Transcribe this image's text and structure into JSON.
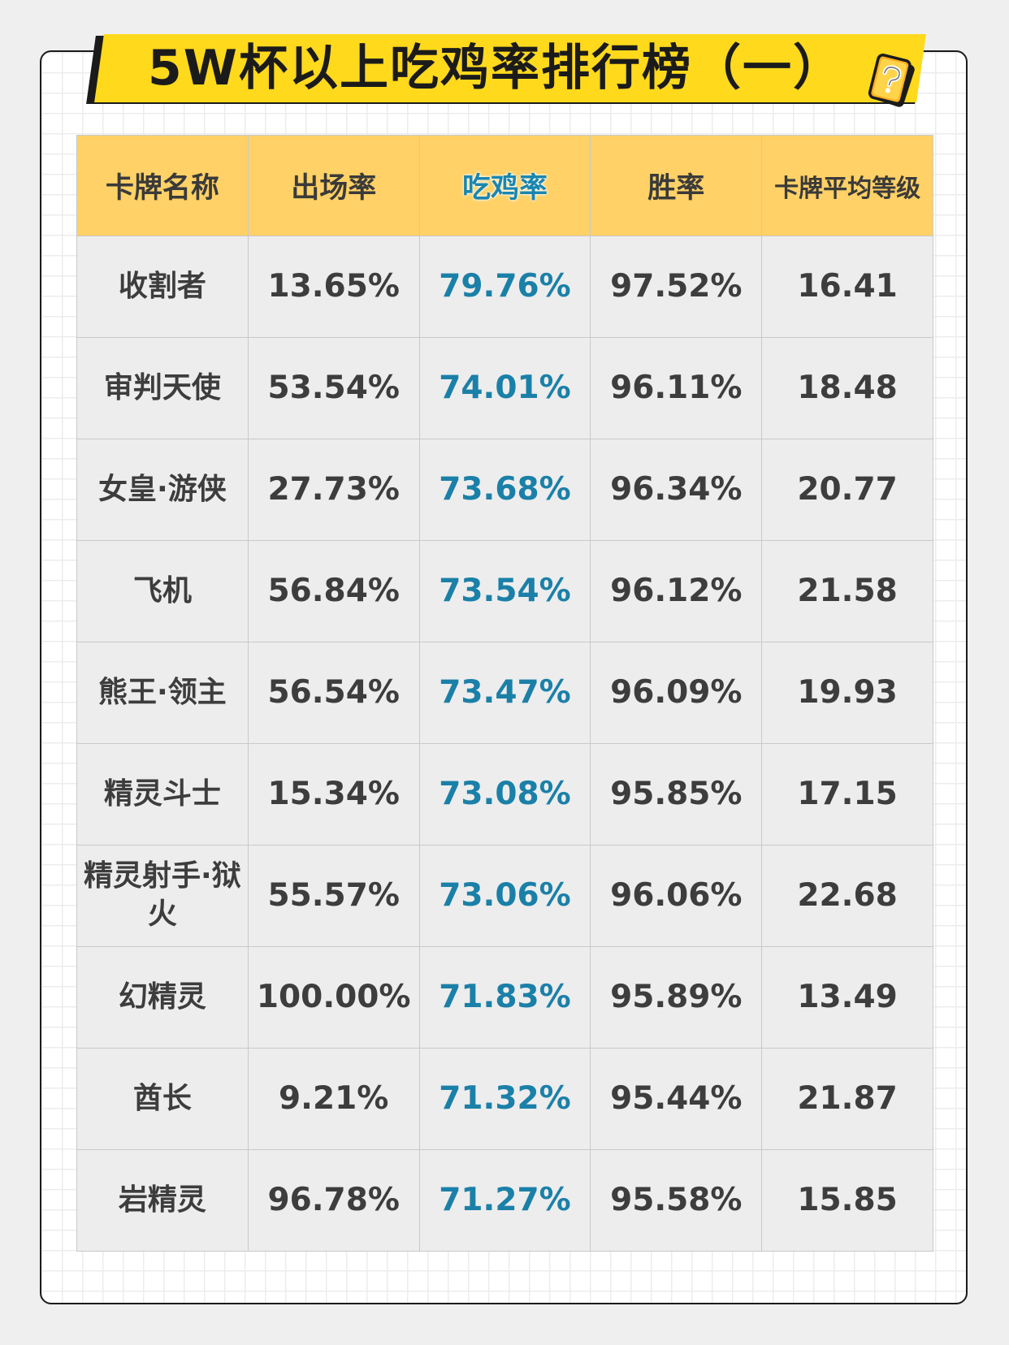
{
  "title": "5W杯以上吃鸡率排行榜（一）",
  "colors": {
    "title_bar": "#ffd91c",
    "header_bg": "#ffd166",
    "highlight_text": "#1b80a8",
    "cell_bg": "#ededed"
  },
  "icon": "card-question-icon",
  "table": {
    "headers": [
      "卡牌名称",
      "出场率",
      "吃鸡率",
      "胜率",
      "卡牌平均等级"
    ],
    "rows": [
      {
        "name": "收割者",
        "appearance": "13.65%",
        "top1": "79.76%",
        "win": "97.52%",
        "level": "16.41"
      },
      {
        "name": "审判天使",
        "appearance": "53.54%",
        "top1": "74.01%",
        "win": "96.11%",
        "level": "18.48"
      },
      {
        "name": "女皇·游侠",
        "appearance": "27.73%",
        "top1": "73.68%",
        "win": "96.34%",
        "level": "20.77"
      },
      {
        "name": "飞机",
        "appearance": "56.84%",
        "top1": "73.54%",
        "win": "96.12%",
        "level": "21.58"
      },
      {
        "name": "熊王·领主",
        "appearance": "56.54%",
        "top1": "73.47%",
        "win": "96.09%",
        "level": "19.93"
      },
      {
        "name": "精灵斗士",
        "appearance": "15.34%",
        "top1": "73.08%",
        "win": "95.85%",
        "level": "17.15"
      },
      {
        "name": "精灵射手·狱火",
        "appearance": "55.57%",
        "top1": "73.06%",
        "win": "96.06%",
        "level": "22.68"
      },
      {
        "name": "幻精灵",
        "appearance": "100.00%",
        "top1": "71.83%",
        "win": "95.89%",
        "level": "13.49"
      },
      {
        "name": "酋长",
        "appearance": "9.21%",
        "top1": "71.32%",
        "win": "95.44%",
        "level": "21.87"
      },
      {
        "name": "岩精灵",
        "appearance": "96.78%",
        "top1": "71.27%",
        "win": "95.58%",
        "level": "15.85"
      }
    ]
  }
}
